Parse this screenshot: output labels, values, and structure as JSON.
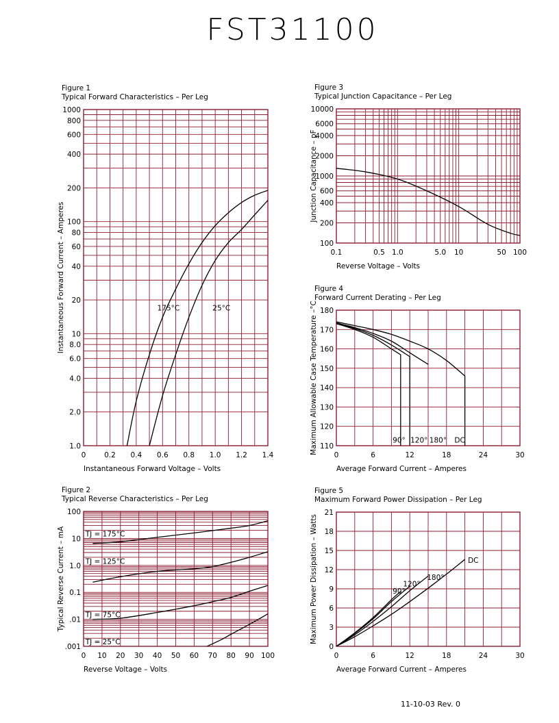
{
  "page": {
    "title": "FST31100",
    "footer": "11-10-03   Rev. 0"
  },
  "colors": {
    "grid": "#8b1a2e",
    "curve": "#000000"
  },
  "chart_data": [
    {
      "id": "fig1",
      "type": "line",
      "figure": "Figure 1",
      "title": "Typical Forward Characteristics – Per Leg",
      "xlabel": "Instantaneous Forward Voltage – Volts",
      "ylabel": "Instantaneous Forward Current – Amperes",
      "xscale": "linear",
      "yscale": "log",
      "xlim": [
        0,
        1.4
      ],
      "ylim": [
        1,
        1000
      ],
      "xticks": [
        0,
        0.2,
        0.4,
        0.6,
        0.8,
        1.0,
        1.2,
        1.4
      ],
      "xtick_labels": [
        "0",
        "0.2",
        "0.4",
        "0.6",
        "0.8",
        "1.0",
        "1.2",
        "1.4"
      ],
      "yticks": [
        1,
        2,
        4,
        6,
        8,
        10,
        20,
        40,
        60,
        80,
        100,
        200,
        400,
        600,
        800,
        1000
      ],
      "ytick_labels": [
        "1.0",
        "2.0",
        "4.0",
        "6.0",
        "8.0",
        "10",
        "20",
        "40",
        "60",
        "80",
        "100",
        "200",
        "400",
        "600",
        "800",
        "1000"
      ],
      "series": [
        {
          "name": "175°C",
          "x": [
            0.33,
            0.4,
            0.5,
            0.6,
            0.7,
            0.8,
            0.9,
            1.0,
            1.1,
            1.2,
            1.3,
            1.4
          ],
          "y": [
            1.0,
            2.5,
            6.5,
            14,
            25,
            42,
            65,
            92,
            120,
            148,
            172,
            190
          ]
        },
        {
          "name": "25°C",
          "x": [
            0.5,
            0.6,
            0.7,
            0.8,
            0.9,
            1.0,
            1.1,
            1.2,
            1.3,
            1.4
          ],
          "y": [
            1.0,
            2.8,
            6.5,
            14,
            27,
            45,
            65,
            85,
            115,
            155
          ]
        }
      ],
      "annotations": [
        {
          "text": "175°C",
          "x": 0.56,
          "y": 17
        },
        {
          "text": "25°C",
          "x": 0.98,
          "y": 17
        }
      ]
    },
    {
      "id": "fig2",
      "type": "line",
      "figure": "Figure 2",
      "title": "Typical Reverse Characteristics – Per Leg",
      "xlabel": "Reverse Voltage – Volts",
      "ylabel": "Typical Reverse Current – mA",
      "xscale": "linear",
      "yscale": "log",
      "xlim": [
        0,
        100
      ],
      "ylim": [
        0.001,
        100
      ],
      "xticks": [
        0,
        10,
        20,
        30,
        40,
        50,
        60,
        70,
        80,
        90,
        100
      ],
      "xtick_labels": [
        "0",
        "10",
        "20",
        "30",
        "40",
        "50",
        "60",
        "70",
        "80",
        "90",
        "100"
      ],
      "yticks": [
        0.001,
        0.01,
        0.1,
        1,
        10,
        100
      ],
      "ytick_labels": [
        ".001",
        ".01",
        "0.1",
        "1.0",
        "10",
        "100"
      ],
      "series": [
        {
          "name": "TJ = 175°C",
          "x": [
            5,
            20,
            40,
            60,
            80,
            90,
            100
          ],
          "y": [
            6.5,
            7.5,
            11,
            16,
            24,
            30,
            45
          ]
        },
        {
          "name": "TJ = 125°C",
          "x": [
            5,
            20,
            40,
            60,
            70,
            80,
            90,
            100
          ],
          "y": [
            0.24,
            0.38,
            0.6,
            0.75,
            0.9,
            1.3,
            2.0,
            3.2
          ]
        },
        {
          "name": "TJ = 75°C",
          "x": [
            5,
            20,
            40,
            60,
            70,
            80,
            90,
            100
          ],
          "y": [
            0.01,
            0.011,
            0.018,
            0.032,
            0.045,
            0.065,
            0.11,
            0.18
          ]
        },
        {
          "name": "TJ = 25°C",
          "x": [
            67,
            75,
            80,
            90,
            100
          ],
          "y": [
            0.001,
            0.0018,
            0.0028,
            0.0065,
            0.016
          ]
        }
      ],
      "annotations": [
        {
          "text": "TJ = 175°C",
          "x": 1,
          "y": 15
        },
        {
          "text": "TJ = 125°C",
          "x": 1,
          "y": 1.45
        },
        {
          "text": "TJ = 75°C",
          "x": 1,
          "y": 0.015
        },
        {
          "text": "TJ = 25°C",
          "x": 1,
          "y": 0.0015
        }
      ]
    },
    {
      "id": "fig3",
      "type": "line",
      "figure": "Figure 3",
      "title": "Typical Junction Capacitance – Per Leg",
      "xlabel": "Reverse Voltage – Volts",
      "ylabel": "Junction Capacitance – pF",
      "xscale": "log",
      "yscale": "log",
      "xlim": [
        0.1,
        100
      ],
      "ylim": [
        100,
        10000
      ],
      "xticks": [
        0.1,
        0.5,
        1.0,
        5.0,
        10,
        50,
        100
      ],
      "xtick_labels": [
        "0.1",
        "0.5",
        "1.0",
        "5.0",
        "10",
        "50",
        "100"
      ],
      "yticks": [
        100,
        200,
        400,
        600,
        1000,
        2000,
        4000,
        6000,
        10000
      ],
      "ytick_labels": [
        "100",
        "200",
        "400",
        "600",
        "1000",
        "2000",
        "4000",
        "6000",
        "10000"
      ],
      "series": [
        {
          "name": "",
          "x": [
            0.1,
            0.3,
            1.0,
            3.0,
            10,
            30,
            70,
            100
          ],
          "y": [
            1300,
            1150,
            900,
            600,
            350,
            190,
            140,
            130
          ]
        }
      ]
    },
    {
      "id": "fig4",
      "type": "line",
      "figure": "Figure 4",
      "title": "Forward Current Derating – Per Leg",
      "xlabel": "Average Forward Current – Amperes",
      "ylabel": "Maximum Allowable Case Temperature –°C",
      "xscale": "linear",
      "yscale": "linear",
      "xlim": [
        0,
        30
      ],
      "ylim": [
        110,
        180
      ],
      "xticks": [
        0,
        6,
        12,
        18,
        24,
        30
      ],
      "xtick_labels": [
        "0",
        "6",
        "12",
        "18",
        "24",
        "30"
      ],
      "yticks": [
        110,
        120,
        130,
        140,
        150,
        160,
        170,
        180
      ],
      "ytick_labels": [
        "110",
        "120",
        "130",
        "140",
        "150",
        "160",
        "170",
        "180"
      ],
      "series": [
        {
          "name": "90°",
          "x": [
            0,
            3,
            6,
            9,
            10.5,
            10.5
          ],
          "y": [
            173,
            170,
            166,
            160,
            157,
            110
          ]
        },
        {
          "name": "120°",
          "x": [
            0,
            3,
            6,
            9,
            12,
            12
          ],
          "y": [
            173,
            170.5,
            167,
            162,
            156,
            110
          ]
        },
        {
          "name": "180°",
          "x": [
            0,
            3,
            6,
            9,
            12,
            15
          ],
          "y": [
            173.5,
            171,
            168,
            164,
            158,
            152
          ]
        },
        {
          "name": "DC",
          "x": [
            0,
            3,
            6,
            9,
            12,
            15,
            18,
            21,
            21
          ],
          "y": [
            174,
            172,
            170,
            167.5,
            164,
            160,
            154,
            146,
            110
          ]
        }
      ],
      "annotations": [
        {
          "text": "90°",
          "x": 9.2,
          "y": 113
        },
        {
          "text": "120°",
          "x": 12.1,
          "y": 113
        },
        {
          "text": "180°",
          "x": 15.2,
          "y": 113
        },
        {
          "text": "DC",
          "x": 19.3,
          "y": 113
        }
      ]
    },
    {
      "id": "fig5",
      "type": "line",
      "figure": "Figure 5",
      "title": "Maximum Forward Power Dissipation – Per Leg",
      "xlabel": "Average Forward Current – Amperes",
      "ylabel": "Maximum Power Dissipation – Watts",
      "xscale": "linear",
      "yscale": "linear",
      "xlim": [
        0,
        30
      ],
      "ylim": [
        0,
        21
      ],
      "xticks": [
        0,
        6,
        12,
        18,
        24,
        30
      ],
      "xtick_labels": [
        "0",
        "6",
        "12",
        "18",
        "24",
        "30"
      ],
      "yticks": [
        0,
        3,
        6,
        9,
        12,
        15,
        18,
        21
      ],
      "ytick_labels": [
        "0",
        "3",
        "6",
        "9",
        "12",
        "15",
        "18",
        "21"
      ],
      "series": [
        {
          "name": "90°",
          "x": [
            0,
            3,
            6,
            9,
            10.5
          ],
          "y": [
            0,
            2.1,
            4.5,
            7.3,
            8.6
          ]
        },
        {
          "name": "120°",
          "x": [
            0,
            3,
            6,
            9,
            12
          ],
          "y": [
            0,
            2.0,
            4.3,
            7.0,
            9.4
          ]
        },
        {
          "name": "180°",
          "x": [
            0,
            3,
            6,
            9,
            12,
            15
          ],
          "y": [
            0,
            1.8,
            3.9,
            6.2,
            8.7,
            11.0
          ]
        },
        {
          "name": "DC",
          "x": [
            0,
            3,
            6,
            9,
            12,
            15,
            18,
            21
          ],
          "y": [
            0,
            1.5,
            3.2,
            5.0,
            7.0,
            9.1,
            11.3,
            13.6
          ]
        }
      ],
      "annotations": [
        {
          "text": "90°",
          "x": 9.2,
          "y": 8.7
        },
        {
          "text": "120°",
          "x": 10.9,
          "y": 9.8
        },
        {
          "text": "180°",
          "x": 14.8,
          "y": 10.8
        },
        {
          "text": "DC",
          "x": 21.5,
          "y": 13.5
        }
      ]
    }
  ]
}
